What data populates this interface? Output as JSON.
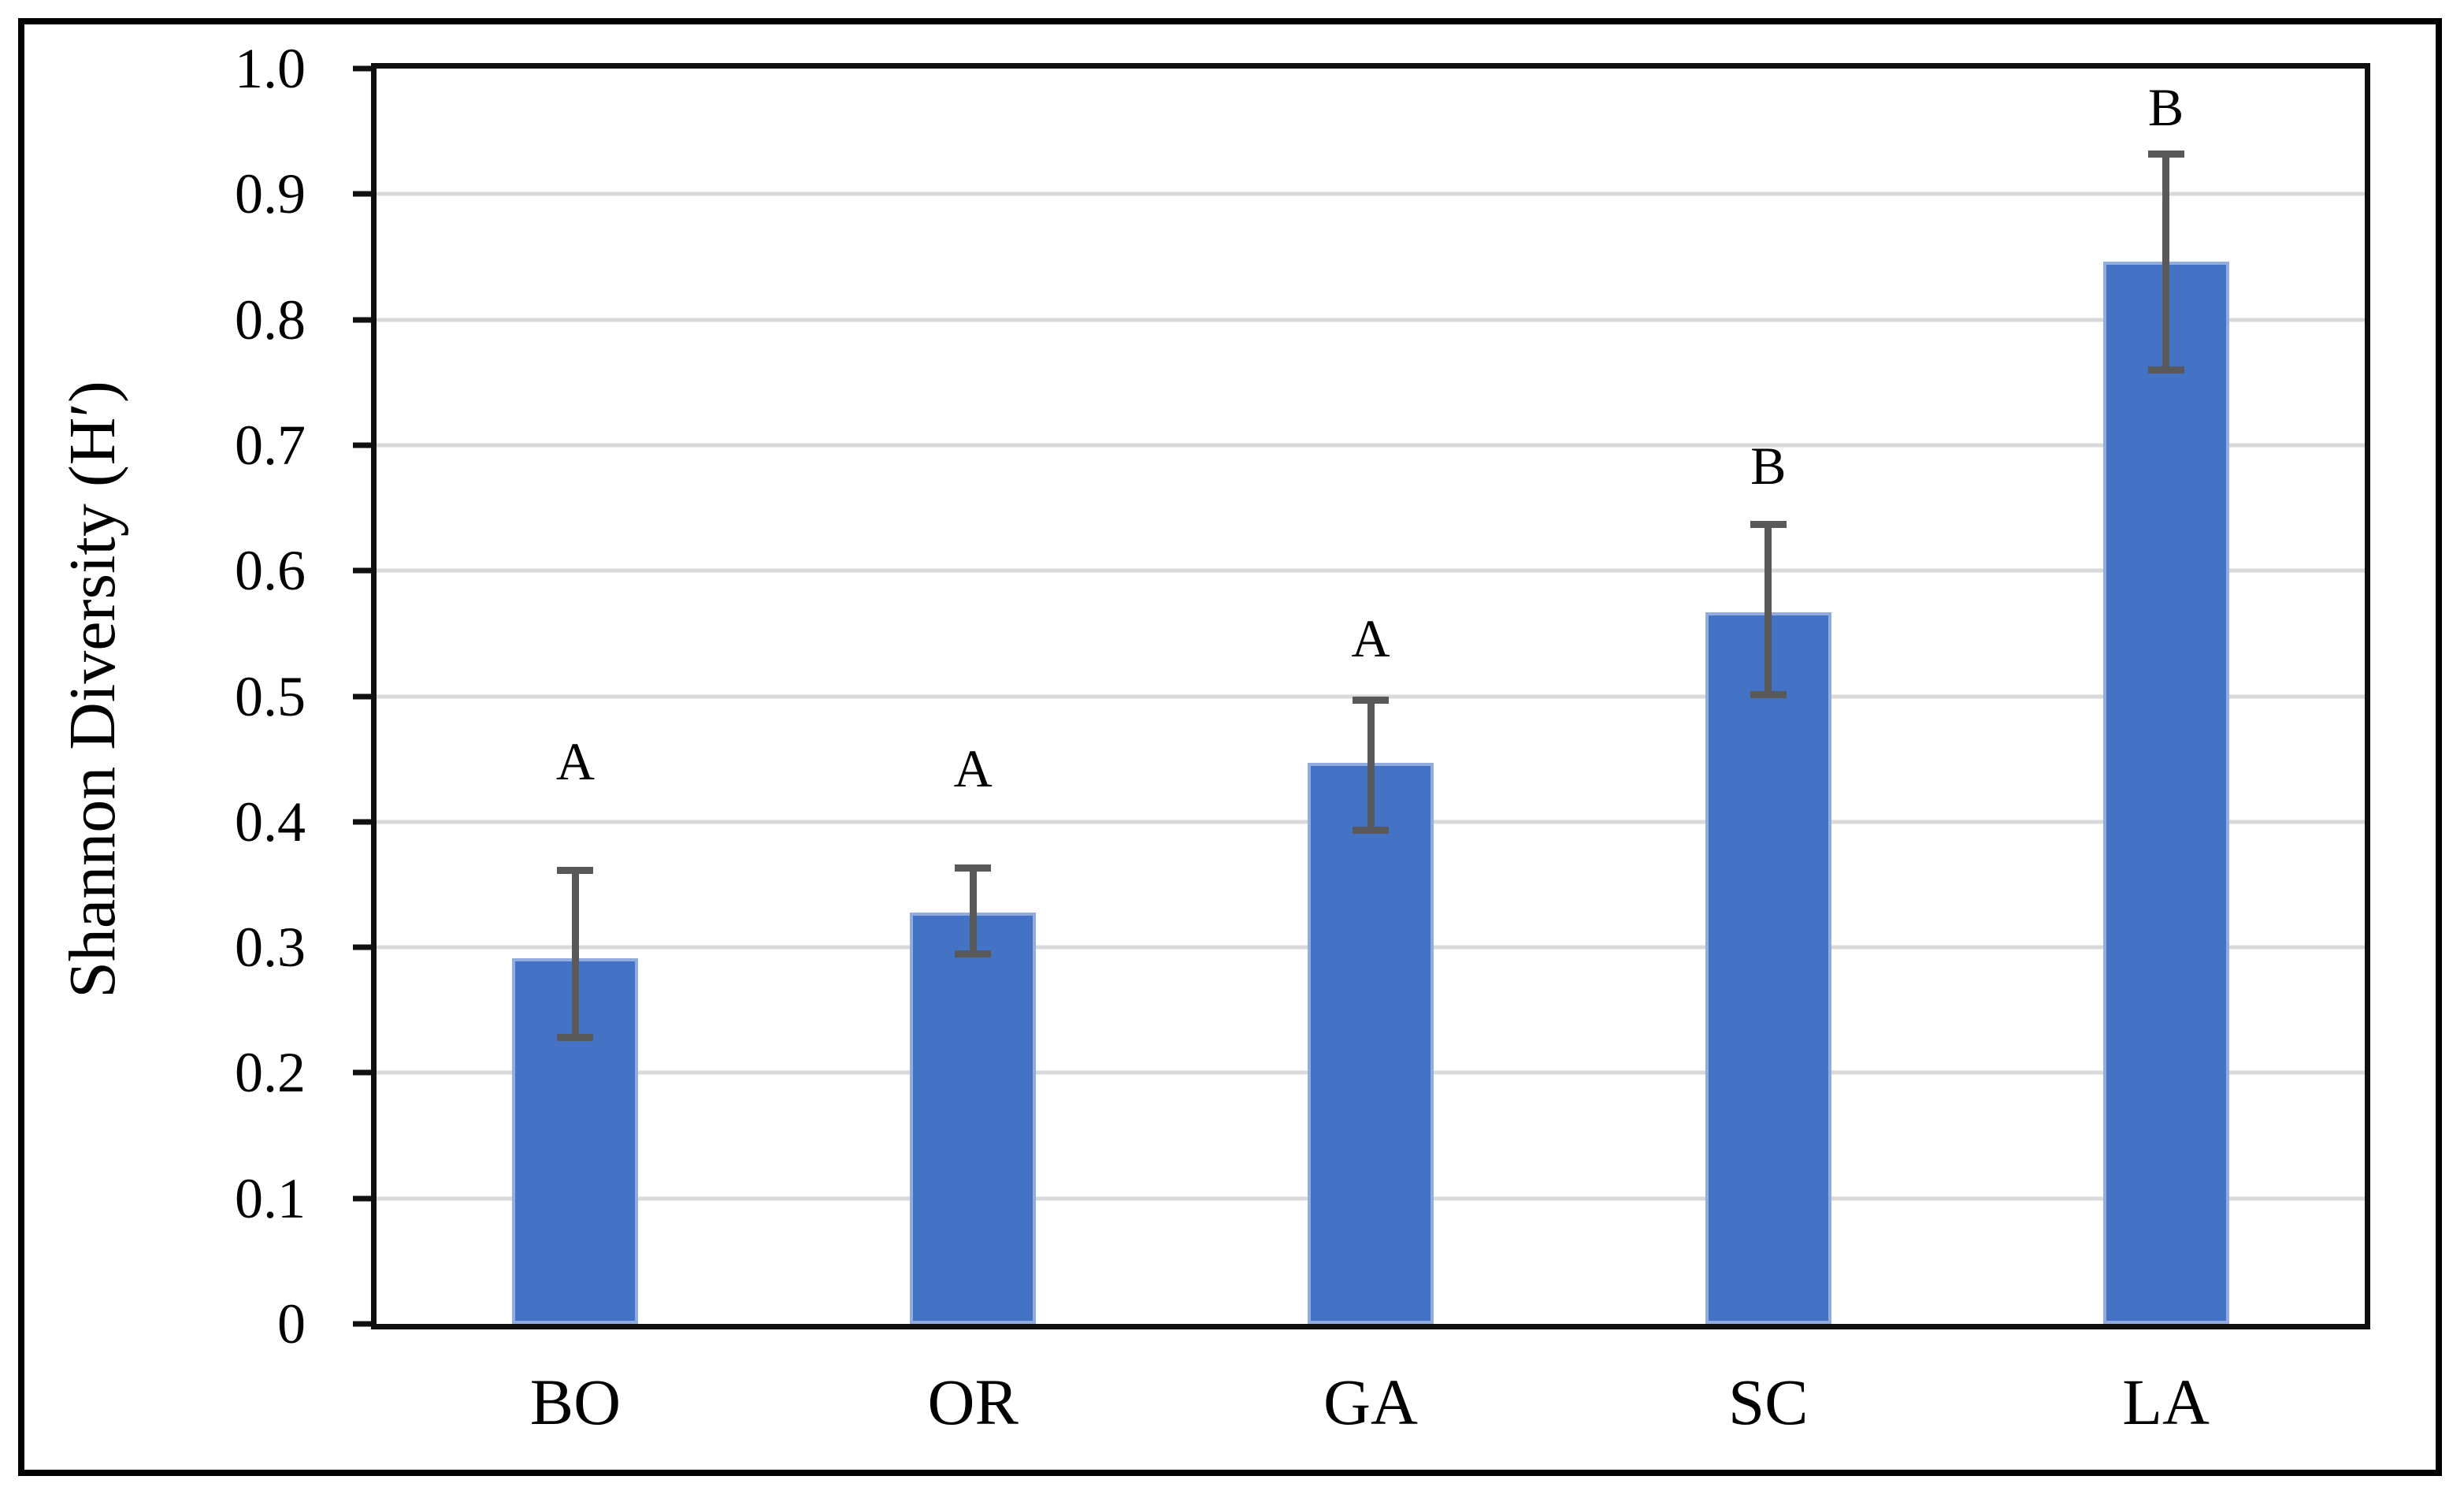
{
  "figure": {
    "background": "#ffffff",
    "border_color": "#000000"
  },
  "chart_data": {
    "type": "bar",
    "title": "",
    "xlabel": "",
    "ylabel": "Shannon Diversity (H′)",
    "ylim": [
      0,
      1.0
    ],
    "ytick_step": 0.1,
    "grid": true,
    "legend": null,
    "categories": [
      "BO",
      "OR",
      "GA",
      "SC",
      "LA"
    ],
    "values": [
      0.291,
      0.328,
      0.447,
      0.567,
      0.846
    ],
    "error_low": [
      0.228,
      0.295,
      0.393,
      0.501,
      0.76
    ],
    "error_high": [
      0.361,
      0.363,
      0.497,
      0.637,
      0.932
    ],
    "sig_letters": [
      "A",
      "A",
      "A",
      "B",
      "B"
    ],
    "letter_baseline_y": [
      0.427,
      0.421,
      0.525,
      0.662,
      0.948
    ],
    "yticks": [
      {
        "v": 0.0,
        "label": "0"
      },
      {
        "v": 0.1,
        "label": "0.1"
      },
      {
        "v": 0.2,
        "label": "0.2"
      },
      {
        "v": 0.3,
        "label": "0.3"
      },
      {
        "v": 0.4,
        "label": "0.4"
      },
      {
        "v": 0.5,
        "label": "0.5"
      },
      {
        "v": 0.6,
        "label": "0.6"
      },
      {
        "v": 0.7,
        "label": "0.7"
      },
      {
        "v": 0.8,
        "label": "0.8"
      },
      {
        "v": 0.9,
        "label": "0.9"
      },
      {
        "v": 1.0,
        "label": "1.0"
      }
    ],
    "colors": {
      "bar": "#4472C4",
      "bar_outline": "#93ACDE",
      "error": "#595959",
      "grid": "#D9D9D9",
      "axis": "#0F0F0F",
      "text": "#000000"
    }
  }
}
